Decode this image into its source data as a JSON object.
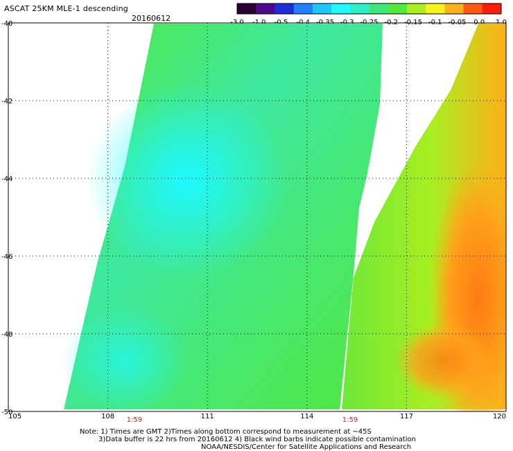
{
  "title": "ASCAT 25KM MLE-1 descending",
  "date": "20160612",
  "colorbar": {
    "labels": [
      "-3.0",
      "-1.0",
      "-0.5",
      "-0.4",
      "-0.35",
      "-0.3",
      "-0.25",
      "-0.2",
      "-0.15",
      "-0.1",
      "-0.05",
      "0.0",
      "1.0"
    ],
    "colors": [
      "#2a0033",
      "#4b0a8a",
      "#1f2bd6",
      "#1e7fff",
      "#1ec6ff",
      "#1efaff",
      "#2cf0c8",
      "#3ee87a",
      "#52e83c",
      "#a8ee20",
      "#f4f41a",
      "#ffb01a",
      "#ff5a14",
      "#ff1e0a"
    ]
  },
  "chart_data": {
    "type": "heatmap",
    "title": "ASCAT 25KM MLE-1 descending",
    "date": "20160612",
    "x_ticks": [
      "105",
      "108",
      "111",
      "114",
      "117",
      "120"
    ],
    "y_ticks": [
      "-40",
      "-42",
      "-44",
      "-46",
      "-48",
      "-50"
    ],
    "xlim": [
      105,
      120
    ],
    "ylim": [
      -50,
      -40
    ],
    "grid": true,
    "time_labels": [
      {
        "lon": 108.8,
        "text": "1:59"
      },
      {
        "lon": 115.3,
        "text": "1:59"
      }
    ],
    "regions": [
      {
        "name": "swath-left-background",
        "value": -0.2
      },
      {
        "name": "cyan-core",
        "value": -0.3
      },
      {
        "name": "swath-right-background",
        "value": -0.15
      },
      {
        "name": "orange-core-east",
        "value": 0.0
      }
    ]
  },
  "notes": {
    "line1": "Note: 1) Times are GMT 2)Times along bottom correspond to measurement at ~45S",
    "line2": "3)Data buffer is 22 hrs from 20160612 4) Black wind barbs indicate possible contamination",
    "line3": "NOAA/NESDIS/Center for Satellite Applications and Research"
  }
}
